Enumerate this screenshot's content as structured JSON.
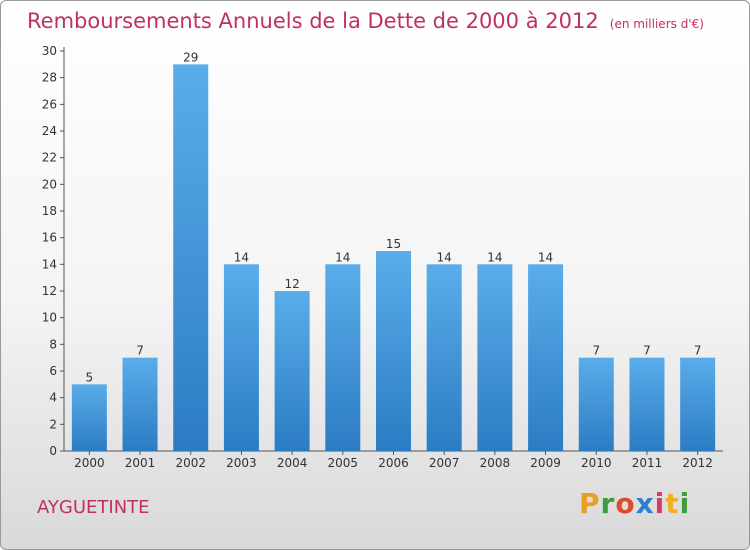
{
  "chart_data": {
    "type": "bar",
    "title": "Remboursements Annuels de la Dette de 2000 à 2012",
    "subtitle": "(en milliers d'€)",
    "categories": [
      "2000",
      "2001",
      "2002",
      "2003",
      "2004",
      "2005",
      "2006",
      "2007",
      "2008",
      "2009",
      "2010",
      "2011",
      "2012"
    ],
    "values": [
      5,
      7,
      29,
      14,
      12,
      14,
      15,
      14,
      14,
      14,
      7,
      7,
      7
    ],
    "ylim": [
      0,
      30
    ],
    "yticks": [
      0,
      2,
      4,
      6,
      8,
      10,
      12,
      14,
      16,
      18,
      20,
      22,
      24,
      26,
      28,
      30
    ],
    "grid": false,
    "bar_color": "#3d94d8"
  },
  "footer": {
    "city": "AYGUETINTE",
    "brand_letters": [
      "P",
      "r",
      "o",
      "x",
      "i",
      "t",
      "i"
    ],
    "brand_colors": [
      "#e8a020",
      "#3c9d3c",
      "#e04a2c",
      "#2f7fd0",
      "#d63a6c",
      "#f0b020",
      "#3c9d3c"
    ]
  }
}
